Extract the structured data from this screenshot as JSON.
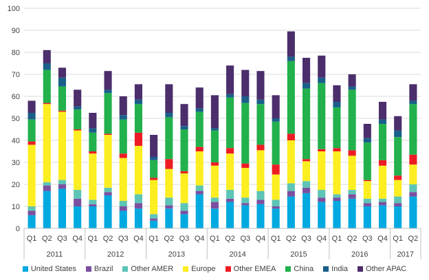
{
  "chart_data": {
    "type": "bar",
    "stacked": true,
    "ylim": [
      0,
      100
    ],
    "yticks": [
      0,
      10,
      20,
      30,
      40,
      50,
      60,
      70,
      80,
      90,
      100
    ],
    "grid": true,
    "legend_position": "bottom",
    "categories": [
      "Q1",
      "Q2",
      "Q3",
      "Q4",
      "Q1",
      "Q2",
      "Q3",
      "Q4",
      "Q1",
      "Q2",
      "Q3",
      "Q4",
      "Q1",
      "Q2",
      "Q3",
      "Q4",
      "Q1",
      "Q2",
      "Q3",
      "Q4",
      "Q1",
      "Q2",
      "Q3",
      "Q4",
      "Q1",
      "Q2"
    ],
    "years": [
      {
        "label": "2011",
        "span": 4
      },
      {
        "label": "2012",
        "span": 4
      },
      {
        "label": "2013",
        "span": 4
      },
      {
        "label": "2014",
        "span": 4
      },
      {
        "label": "2015",
        "span": 4
      },
      {
        "label": "2016",
        "span": 4
      },
      {
        "label": "2017",
        "span": 2
      }
    ],
    "series": [
      {
        "name": "United States",
        "color": "#00a9e0",
        "values": [
          6,
          17,
          18,
          10,
          10,
          15,
          8,
          9,
          3.5,
          9,
          6.5,
          15.5,
          9,
          12,
          10.5,
          11,
          9,
          14.5,
          16,
          12,
          12.5,
          13.5,
          10,
          10.5,
          10,
          14.5
        ]
      },
      {
        "name": "Brazil",
        "color": "#7b4fa0",
        "values": [
          2,
          2.5,
          2,
          3.5,
          1,
          1.5,
          2,
          2.5,
          1,
          1.5,
          1.5,
          1.5,
          3,
          1.5,
          1,
          2,
          1,
          2.5,
          2.5,
          2,
          1.5,
          2,
          1.5,
          1.5,
          1.5,
          2
        ]
      },
      {
        "name": "Other AMER",
        "color": "#5ec4b6",
        "values": [
          2,
          1.5,
          2,
          4,
          2,
          2,
          2.5,
          4,
          2,
          3.5,
          3.5,
          2.5,
          2,
          4,
          2.5,
          4,
          3,
          3.5,
          3,
          3.5,
          1.5,
          2,
          2,
          1.5,
          3,
          3.5
        ]
      },
      {
        "name": "Europe",
        "color": "#fcee21",
        "values": [
          28,
          35.5,
          31,
          27,
          21,
          24,
          19.5,
          22,
          15.5,
          13,
          13.5,
          15.5,
          14.5,
          16.5,
          13.5,
          18.5,
          11.5,
          19.5,
          9,
          17.5,
          19.5,
          15.5,
          8,
          15,
          7.5,
          9
        ]
      },
      {
        "name": "Other EMEA",
        "color": "#ed1c24",
        "values": [
          1.5,
          0.5,
          0.5,
          0.5,
          1,
          0.5,
          2,
          6,
          1,
          4.5,
          1,
          2,
          1.5,
          2.5,
          2,
          2.5,
          4.5,
          3,
          1,
          1,
          1.5,
          2.5,
          0.5,
          2.5,
          2,
          4.5
        ]
      },
      {
        "name": "China",
        "color": "#22b14c",
        "values": [
          10,
          15,
          11,
          9,
          8.5,
          18.5,
          15.5,
          13,
          8,
          19,
          19,
          16,
          14.5,
          23,
          27.5,
          18.5,
          19.5,
          33,
          32,
          30,
          18.5,
          27.5,
          17,
          16.5,
          17.5,
          23
        ]
      },
      {
        "name": "India",
        "color": "#1a5f8a",
        "values": [
          3,
          3,
          4,
          1.5,
          2,
          1.5,
          2,
          2,
          1.5,
          2,
          1.5,
          1.5,
          1,
          1.5,
          3,
          2,
          1.5,
          2,
          2.5,
          2.5,
          2.5,
          1.5,
          2,
          2,
          3,
          1.5
        ]
      },
      {
        "name": "Other APAC",
        "color": "#4b2e6b",
        "values": [
          5.5,
          6,
          4.5,
          7.5,
          7,
          8.5,
          8.5,
          7,
          10,
          13,
          10,
          9.5,
          15,
          13,
          12,
          13,
          10.5,
          11.5,
          11.5,
          10,
          7.5,
          5.5,
          6.5,
          8,
          6.5,
          7.5
        ]
      }
    ]
  }
}
